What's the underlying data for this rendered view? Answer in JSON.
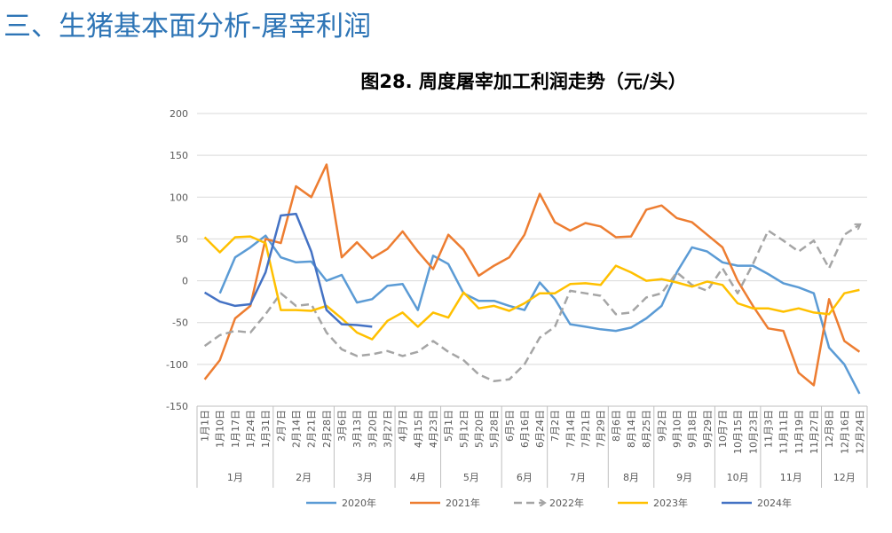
{
  "header": {
    "title": "三、生猪基本面分析-屠宰利润"
  },
  "chart_data": {
    "type": "line",
    "title": "图28. 周度屠宰加工利润走势（元/头）",
    "categories": [
      "1月1日",
      "1月10日",
      "1月17日",
      "1月24日",
      "1月31日",
      "2月7日",
      "2月14日",
      "2月21日",
      "2月28日",
      "3月6日",
      "3月13日",
      "3月20日",
      "3月27日",
      "4月7日",
      "4月15日",
      "4月23日",
      "5月1日",
      "5月12日",
      "5月20日",
      "5月28日",
      "6月5日",
      "6月16日",
      "6月24日",
      "7月2日",
      "7月14日",
      "7月21日",
      "7月29日",
      "8月6日",
      "8月14日",
      "8月25日",
      "9月2日",
      "9月10日",
      "9月18日",
      "9月29日",
      "10月7日",
      "10月15日",
      "10月23日",
      "11月3日",
      "11月11日",
      "11月19日",
      "11月27日",
      "12月8日",
      "12月16日",
      "12月24日"
    ],
    "month_groups": [
      {
        "name": "1月",
        "categories": 5
      },
      {
        "name": "2月",
        "categories": 4
      },
      {
        "name": "3月",
        "categories": 4
      },
      {
        "name": "4月",
        "categories": 3
      },
      {
        "name": "5月",
        "categories": 4
      },
      {
        "name": "6月",
        "categories": 3
      },
      {
        "name": "7月",
        "categories": 4
      },
      {
        "name": "8月",
        "categories": 3
      },
      {
        "name": "9月",
        "categories": 4
      },
      {
        "name": "10月",
        "categories": 3
      },
      {
        "name": "11月",
        "categories": 4
      },
      {
        "name": "12月",
        "categories": 3
      }
    ],
    "ylim": [
      -150,
      200
    ],
    "yticks": [
      -150,
      -100,
      -50,
      0,
      50,
      100,
      150,
      200
    ],
    "grid": true,
    "legend": "bottom",
    "series": [
      {
        "name": "2020年",
        "color": "#5b9bd5",
        "dash": false,
        "values": [
          null,
          -15,
          28,
          40,
          54,
          28,
          22,
          23,
          0,
          7,
          -26,
          -22,
          -6,
          -4,
          -35,
          30,
          20,
          -15,
          -24,
          -24,
          -30,
          -35,
          -2,
          -22,
          -52,
          -55,
          -58,
          -60,
          -56,
          -45,
          -30,
          10,
          40,
          35,
          22,
          18,
          18,
          8,
          -3,
          -8,
          -15,
          -80,
          -100,
          -135
        ]
      },
      {
        "name": "2021年",
        "color": "#ed7d31",
        "dash": false,
        "values": [
          -118,
          -95,
          -45,
          -30,
          50,
          45,
          113,
          100,
          139,
          28,
          46,
          27,
          38,
          59,
          35,
          14,
          55,
          37,
          6,
          18,
          28,
          55,
          104,
          70,
          60,
          69,
          65,
          52,
          53,
          85,
          90,
          75,
          70,
          55,
          40,
          0,
          -30,
          -57,
          -60,
          -110,
          -125,
          -22,
          -72,
          -85
        ]
      },
      {
        "name": "2022年",
        "color": "#a5a5a5",
        "dash": true,
        "values": [
          -78,
          -65,
          -60,
          -62,
          -40,
          -15,
          -30,
          -28,
          -62,
          -82,
          -90,
          -88,
          -84,
          -90,
          -85,
          -72,
          -85,
          -95,
          -112,
          -120,
          -118,
          -100,
          -68,
          -55,
          -12,
          -15,
          -18,
          -40,
          -38,
          -20,
          -15,
          10,
          -5,
          -12,
          15,
          -15,
          20,
          60,
          48,
          35,
          48,
          15,
          55,
          67
        ]
      },
      {
        "name": "2023年",
        "color": "#ffc000",
        "dash": false,
        "values": [
          52,
          34,
          52,
          53,
          45,
          -35,
          -35,
          -36,
          -30,
          -45,
          -62,
          -70,
          -48,
          -38,
          -55,
          -38,
          -44,
          -14,
          -33,
          -30,
          -36,
          -27,
          -15,
          -15,
          -4,
          -3,
          -5,
          18,
          10,
          0,
          2,
          -2,
          -7,
          -1,
          -5,
          -27,
          -33,
          -33,
          -37,
          -33,
          -38,
          -40,
          -15,
          -11
        ]
      },
      {
        "name": "2024年",
        "color": "#4472c4",
        "dash": false,
        "values": [
          -14,
          -25,
          -30,
          -28,
          10,
          78,
          80,
          35,
          -35,
          -52,
          -53,
          -55,
          null,
          null,
          null,
          null,
          null,
          null,
          null,
          null,
          null,
          null,
          null,
          null,
          null,
          null,
          null,
          null,
          null,
          null,
          null,
          null,
          null,
          null,
          null,
          null,
          null,
          null,
          null,
          null,
          null,
          null,
          null,
          null
        ]
      }
    ]
  }
}
